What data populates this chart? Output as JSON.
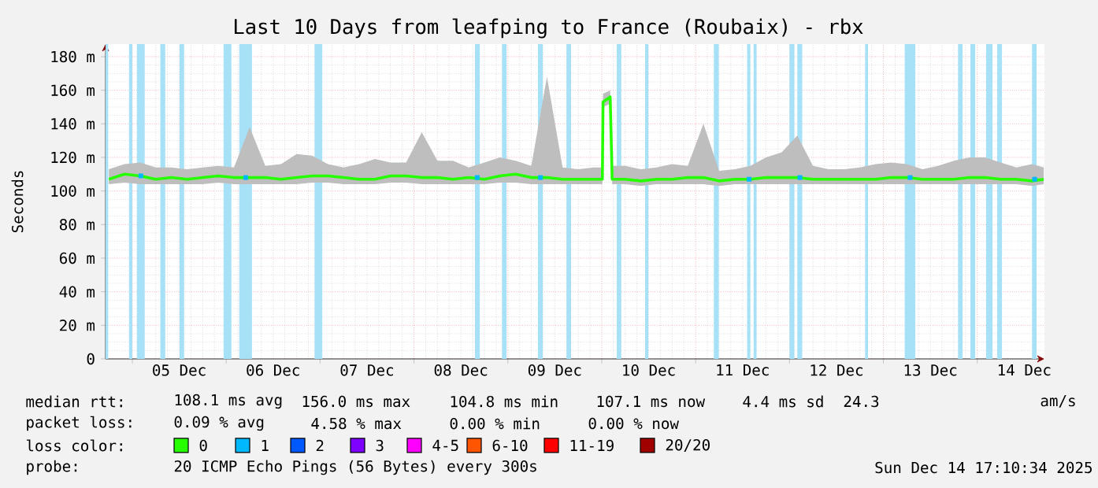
{
  "chart_data": {
    "type": "line",
    "title": "Last 10 Days from leafping to France (Roubaix) - rbx",
    "ylabel": "Seconds",
    "legend_title": "loss color:",
    "legend": "bottom",
    "grid": true,
    "xlim": [
      "2025-12-04T17:10",
      "2025-12-14T17:10"
    ],
    "ylim": [
      0,
      187.5
    ],
    "xticks": [
      {
        "value": "2025-12-05T00:00",
        "label": null
      },
      {
        "value": "2025-12-05T12:00",
        "label": "05 Dec"
      },
      {
        "value": "2025-12-06T00:00",
        "label": null
      },
      {
        "value": "2025-12-06T12:00",
        "label": "06 Dec"
      },
      {
        "value": "2025-12-07T00:00",
        "label": null
      },
      {
        "value": "2025-12-07T12:00",
        "label": "07 Dec"
      },
      {
        "value": "2025-12-08T00:00",
        "label": null
      },
      {
        "value": "2025-12-08T12:00",
        "label": "08 Dec"
      },
      {
        "value": "2025-12-09T00:00",
        "label": null
      },
      {
        "value": "2025-12-09T12:00",
        "label": "09 Dec"
      },
      {
        "value": "2025-12-10T00:00",
        "label": null
      },
      {
        "value": "2025-12-10T12:00",
        "label": "10 Dec"
      },
      {
        "value": "2025-12-11T00:00",
        "label": null
      },
      {
        "value": "2025-12-11T12:00",
        "label": "11 Dec"
      },
      {
        "value": "2025-12-12T00:00",
        "label": null
      },
      {
        "value": "2025-12-12T12:00",
        "label": "12 Dec"
      },
      {
        "value": "2025-12-13T00:00",
        "label": null
      },
      {
        "value": "2025-12-13T12:00",
        "label": "13 Dec"
      },
      {
        "value": "2025-12-14T00:00",
        "label": null
      },
      {
        "value": "2025-12-14T12:00",
        "label": "14 Dec"
      }
    ],
    "yticks": [
      0,
      {
        "value": 20,
        "label": "20 m"
      },
      {
        "value": 40,
        "label": "40 m"
      },
      {
        "value": 60,
        "label": "60 m"
      },
      {
        "value": 80,
        "label": "80 m"
      },
      {
        "value": 100,
        "label": "100 m"
      },
      {
        "value": 120,
        "label": "120 m"
      },
      {
        "value": 140,
        "label": "140 m"
      },
      {
        "value": 160,
        "label": "160 m"
      },
      {
        "value": 180,
        "label": "180 m"
      }
    ],
    "series": [
      {
        "name": "0",
        "color": "#26ff00",
        "x": [
          "2025-12-04T18:00",
          "2025-12-04T22:00",
          "2025-12-05T02:00",
          "2025-12-05T06:00",
          "2025-12-05T10:00",
          "2025-12-05T14:00",
          "2025-12-05T18:00",
          "2025-12-05T22:00",
          "2025-12-06T02:00",
          "2025-12-06T06:00",
          "2025-12-06T10:00",
          "2025-12-06T14:00",
          "2025-12-06T18:00",
          "2025-12-06T22:00",
          "2025-12-07T02:00",
          "2025-12-07T06:00",
          "2025-12-07T10:00",
          "2025-12-07T14:00",
          "2025-12-07T18:00",
          "2025-12-07T22:00",
          "2025-12-08T02:00",
          "2025-12-08T06:00",
          "2025-12-08T10:00",
          "2025-12-08T14:00",
          "2025-12-08T18:00",
          "2025-12-08T22:00",
          "2025-12-09T02:00",
          "2025-12-09T06:00",
          "2025-12-09T10:00",
          "2025-12-09T14:00",
          "2025-12-09T18:00",
          "2025-12-09T22:00",
          "2025-12-10T00:10",
          "2025-12-10T00:20",
          "2025-12-10T02:10",
          "2025-12-10T02:40",
          "2025-12-10T06:00",
          "2025-12-10T10:00",
          "2025-12-10T14:00",
          "2025-12-10T18:00",
          "2025-12-10T22:00",
          "2025-12-11T02:00",
          "2025-12-11T06:00",
          "2025-12-11T10:00",
          "2025-12-11T14:00",
          "2025-12-11T18:00",
          "2025-12-11T22:00",
          "2025-12-12T02:00",
          "2025-12-12T06:00",
          "2025-12-12T10:00",
          "2025-12-12T14:00",
          "2025-12-12T18:00",
          "2025-12-12T22:00",
          "2025-12-13T02:00",
          "2025-12-13T06:00",
          "2025-12-13T10:00",
          "2025-12-13T14:00",
          "2025-12-13T18:00",
          "2025-12-13T22:00",
          "2025-12-14T02:00",
          "2025-12-14T06:00",
          "2025-12-14T10:00",
          "2025-12-14T14:00",
          "2025-12-14T17:00"
        ],
        "values": [
          107,
          110,
          109,
          107,
          108,
          107,
          108,
          109,
          108,
          108,
          108,
          107,
          108,
          109,
          109,
          108,
          107,
          107,
          109,
          109,
          108,
          108,
          107,
          108,
          107,
          109,
          110,
          108,
          108,
          107,
          107,
          107,
          107,
          153,
          156,
          107,
          107,
          106,
          107,
          107,
          108,
          108,
          106,
          107,
          107,
          108,
          108,
          108,
          107,
          107,
          107,
          107,
          107,
          108,
          108,
          107,
          107,
          107,
          108,
          108,
          107,
          107,
          106,
          107
        ],
        "lower": [
          104,
          105,
          104,
          104,
          104,
          104,
          104,
          105,
          104,
          104,
          104,
          104,
          104,
          105,
          105,
          104,
          104,
          104,
          105,
          105,
          104,
          104,
          104,
          104,
          104,
          105,
          105,
          104,
          104,
          104,
          104,
          104,
          104,
          150,
          152,
          104,
          104,
          103,
          104,
          104,
          104,
          104,
          103,
          104,
          104,
          104,
          104,
          104,
          104,
          104,
          104,
          104,
          104,
          104,
          104,
          104,
          104,
          104,
          104,
          104,
          104,
          104,
          103,
          104
        ],
        "upper": [
          113,
          116,
          117,
          114,
          114,
          113,
          114,
          115,
          114,
          138,
          115,
          116,
          122,
          121,
          116,
          114,
          116,
          119,
          117,
          117,
          135,
          118,
          118,
          114,
          117,
          120,
          118,
          115,
          168,
          114,
          113,
          114,
          114,
          158,
          160,
          115,
          115,
          113,
          114,
          116,
          115,
          140,
          112,
          113,
          115,
          120,
          123,
          133,
          115,
          113,
          113,
          114,
          116,
          117,
          116,
          113,
          115,
          118,
          120,
          120,
          117,
          114,
          116,
          114
        ]
      },
      {
        "name": "1",
        "type": "scatter",
        "color": "#00b8ff",
        "x": [
          "2025-12-05T02:10",
          "2025-12-06T05:00",
          "2025-12-08T16:10",
          "2025-12-09T08:20",
          "2025-12-11T13:40",
          "2025-12-12T02:40",
          "2025-12-13T06:50",
          "2025-12-14T14:40"
        ],
        "values": [
          109,
          108,
          108,
          108,
          107,
          108,
          108,
          107
        ]
      },
      {
        "name": "2",
        "type": "scatter",
        "color": "#0059ff"
      },
      {
        "name": "3",
        "type": "scatter",
        "color": "#7e00ff"
      },
      {
        "name": "4-5",
        "type": "scatter",
        "color": "#ff00ff"
      },
      {
        "name": "6-10",
        "type": "scatter",
        "color": "#ff5500"
      },
      {
        "name": "11-19",
        "type": "scatter",
        "color": "#ff0000"
      },
      {
        "name": "20/20",
        "type": "scatter",
        "color": "#a10000"
      }
    ],
    "bands": [
      {
        "axis": "x",
        "from": "2025-12-04T17:10",
        "to": "2025-12-04T17:50",
        "color": "#a6e1f7"
      },
      {
        "axis": "x",
        "from": "2025-12-04T23:10",
        "to": "2025-12-05T00:00",
        "color": "#a6e1f7"
      },
      {
        "axis": "x",
        "from": "2025-12-05T01:10",
        "to": "2025-12-05T03:10",
        "color": "#a6e1f7"
      },
      {
        "axis": "x",
        "from": "2025-12-05T07:10",
        "to": "2025-12-05T08:25",
        "color": "#a6e1f7"
      },
      {
        "axis": "x",
        "from": "2025-12-05T12:05",
        "to": "2025-12-05T13:15",
        "color": "#a6e1f7"
      },
      {
        "axis": "x",
        "from": "2025-12-05T23:20",
        "to": "2025-12-06T01:20",
        "color": "#a6e1f7"
      },
      {
        "axis": "x",
        "from": "2025-12-06T03:20",
        "to": "2025-12-06T06:35",
        "color": "#a6e1f7"
      },
      {
        "axis": "x",
        "from": "2025-12-06T22:35",
        "to": "2025-12-07T00:35",
        "color": "#a6e1f7"
      },
      {
        "axis": "x",
        "from": "2025-12-08T15:35",
        "to": "2025-12-08T16:50",
        "color": "#a6e1f7"
      },
      {
        "axis": "x",
        "from": "2025-12-08T22:30",
        "to": "2025-12-08T23:40",
        "color": "#a6e1f7"
      },
      {
        "axis": "x",
        "from": "2025-12-09T07:40",
        "to": "2025-12-09T08:55",
        "color": "#a6e1f7"
      },
      {
        "axis": "x",
        "from": "2025-12-09T15:00",
        "to": "2025-12-09T16:10",
        "color": "#a6e1f7"
      },
      {
        "axis": "x",
        "from": "2025-12-10T03:50",
        "to": "2025-12-10T05:00",
        "color": "#a6e1f7"
      },
      {
        "axis": "x",
        "from": "2025-12-10T11:05",
        "to": "2025-12-10T11:55",
        "color": "#a6e1f7"
      },
      {
        "axis": "x",
        "from": "2025-12-11T04:40",
        "to": "2025-12-11T05:55",
        "color": "#a6e1f7"
      },
      {
        "axis": "x",
        "from": "2025-12-11T13:10",
        "to": "2025-12-11T14:00",
        "color": "#a6e1f7"
      },
      {
        "axis": "x",
        "from": "2025-12-11T14:50",
        "to": "2025-12-11T15:35",
        "color": "#a6e1f7"
      },
      {
        "axis": "x",
        "from": "2025-12-12T00:00",
        "to": "2025-12-12T01:15",
        "color": "#a6e1f7"
      },
      {
        "axis": "x",
        "from": "2025-12-12T02:00",
        "to": "2025-12-12T03:15",
        "color": "#a6e1f7"
      },
      {
        "axis": "x",
        "from": "2025-12-12T19:20",
        "to": "2025-12-12T20:05",
        "color": "#a6e1f7"
      },
      {
        "axis": "x",
        "from": "2025-12-13T05:25",
        "to": "2025-12-13T08:10",
        "color": "#a6e1f7"
      },
      {
        "axis": "x",
        "from": "2025-12-13T19:05",
        "to": "2025-12-13T20:15",
        "color": "#a6e1f7"
      },
      {
        "axis": "x",
        "from": "2025-12-13T22:15",
        "to": "2025-12-13T23:30",
        "color": "#a6e1f7"
      },
      {
        "axis": "x",
        "from": "2025-12-14T02:15",
        "to": "2025-12-14T03:55",
        "color": "#a6e1f7"
      },
      {
        "axis": "x",
        "from": "2025-12-14T05:05",
        "to": "2025-12-14T06:20",
        "color": "#a6e1f7"
      },
      {
        "axis": "x",
        "from": "2025-12-14T14:00",
        "to": "2025-12-14T15:10",
        "color": "#a6e1f7"
      }
    ],
    "annotations": [
      "median rtt:",
      "108.1 ms avg",
      "156.0 ms max",
      "104.8 ms min",
      "107.1 ms now",
      "4.4 ms sd",
      "24.3",
      "am/s",
      "packet loss:",
      "0.09 % avg",
      "4.58 % max",
      "0.00 % min",
      "0.00 % now",
      "probe:",
      "20 ICMP Echo Pings (56 Bytes) every 300s",
      "Sun Dec 14 17:10:34 2025"
    ]
  }
}
